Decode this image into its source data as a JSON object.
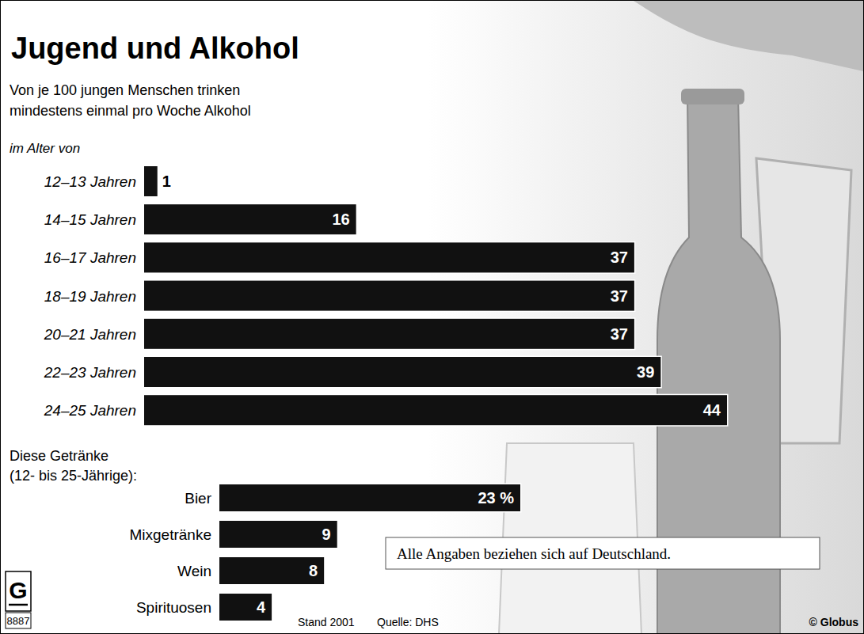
{
  "chart_data": [
    {
      "type": "bar",
      "orientation": "horizontal",
      "title": "Jugend und Alkohol",
      "subtitle": "Von je 100 jungen Menschen trinken mindestens einmal pro Woche Alkohol",
      "ylabel": "im Alter von",
      "categories": [
        "12–13 Jahren",
        "14–15 Jahren",
        "16–17 Jahren",
        "18–19 Jahren",
        "20–21 Jahren",
        "22–23 Jahren",
        "24–25 Jahren"
      ],
      "values": [
        1,
        16,
        37,
        37,
        37,
        39,
        44
      ],
      "color": "#111111",
      "xlim": [
        0,
        44
      ],
      "data_labels": true,
      "tick_labels": false,
      "grid": false
    },
    {
      "type": "bar",
      "orientation": "horizontal",
      "title": "Diese Getränke (12- bis 25-Jährige):",
      "categories": [
        "Bier",
        "Mixgetränke",
        "Wein",
        "Spirituosen"
      ],
      "values": [
        23,
        9,
        8,
        4
      ],
      "value_labels": [
        "23 %",
        "9",
        "8",
        "4"
      ],
      "color": "#111111",
      "xlim": [
        0,
        23
      ],
      "data_labels": true,
      "tick_labels": false,
      "grid": false
    }
  ],
  "note": "Alle Angaben beziehen sich auf Deutschland.",
  "footer": {
    "date": "Stand 2001",
    "source": "Quelle: DHS",
    "copyright": "© Globus",
    "logo_letter": "G",
    "logo_number": "8887"
  }
}
